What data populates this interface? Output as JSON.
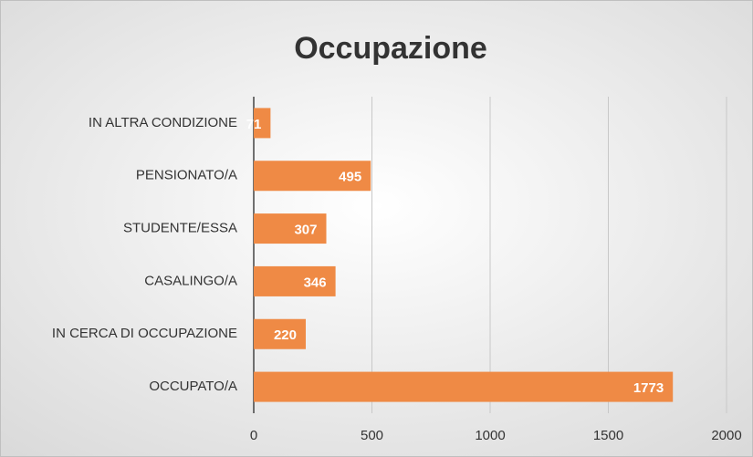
{
  "chart_data": {
    "type": "barh",
    "title": "Occupazione",
    "categories": [
      "IN ALTRA CONDIZIONE",
      "PENSIONATO/A",
      "STUDENTE/ESSA",
      "CASALINGO/A",
      "IN CERCA DI OCCUPAZIONE",
      "OCCUPATO/A"
    ],
    "values": [
      71,
      495,
      307,
      346,
      220,
      1773
    ],
    "color": "#ef8a45",
    "xlim": [
      0,
      2000
    ],
    "xticks": [
      0,
      500,
      1000,
      1500,
      2000
    ],
    "grid": true
  }
}
